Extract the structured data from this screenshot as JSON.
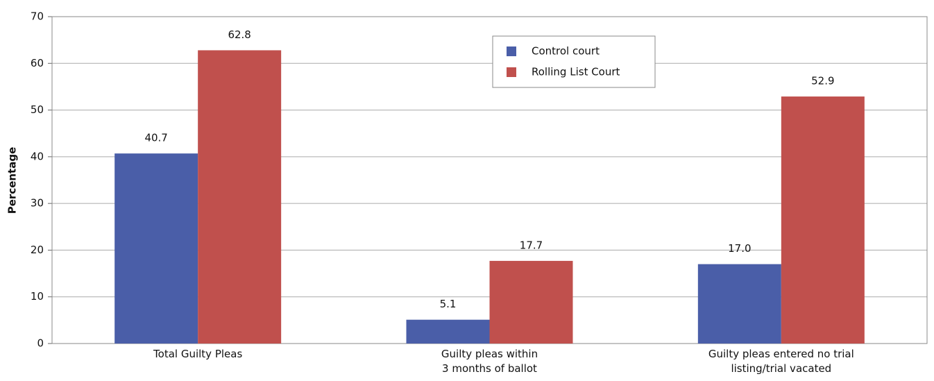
{
  "chart_data": {
    "type": "bar",
    "y_label": "Percentage",
    "categories": [
      "Total Guilty Pleas",
      "Guilty pleas within\n3 months of ballot",
      "Guilty pleas entered no trial\nlisting/trial vacated"
    ],
    "series": [
      {
        "name": "Control court",
        "color": "#4a5ea8",
        "values": [
          40.7,
          5.1,
          17.0
        ],
        "value_labels": [
          "40.7",
          "5.1",
          "17.0"
        ]
      },
      {
        "name": "Rolling List Court",
        "color": "#c0504d",
        "values": [
          62.8,
          17.7,
          52.9
        ],
        "value_labels": [
          "62.8",
          "17.7",
          "52.9"
        ]
      }
    ],
    "ylim": [
      0,
      70
    ],
    "yticks": [
      0,
      10,
      20,
      30,
      40,
      50,
      60,
      70
    ],
    "grid": true,
    "legend": "top"
  }
}
